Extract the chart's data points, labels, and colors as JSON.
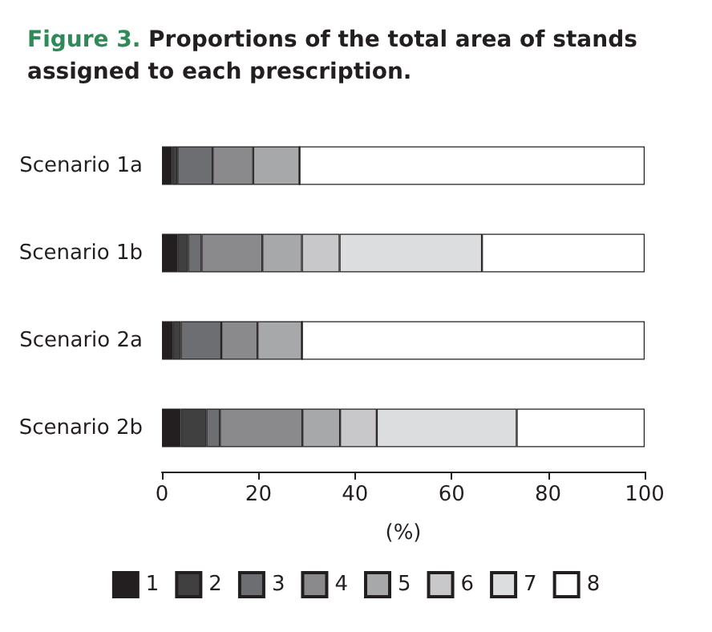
{
  "chart_data": {
    "type": "bar",
    "orientation": "horizontal",
    "stacked": true,
    "title": "Figure 3. Proportions of the total area of stands assigned to each prescription.",
    "xlabel": "(%)",
    "categories": [
      "Scenario 1a",
      "Scenario 1b",
      "Scenario 2a",
      "Scenario 2b"
    ],
    "series": [
      {
        "name": "1",
        "color": "#231f20",
        "values": [
          2.1,
          3.2,
          2.2,
          3.9
        ]
      },
      {
        "name": "2",
        "color": "#404040",
        "values": [
          1.1,
          2.2,
          1.7,
          5.3
        ]
      },
      {
        "name": "3",
        "color": "#6d6e71",
        "values": [
          7.3,
          2.8,
          8.4,
          2.8
        ]
      },
      {
        "name": "4",
        "color": "#8a8a8c",
        "values": [
          8.4,
          12.6,
          7.5,
          17.1
        ]
      },
      {
        "name": "5",
        "color": "#a7a8aa",
        "values": [
          9.6,
          8.2,
          9.2,
          7.8
        ]
      },
      {
        "name": "6",
        "color": "#c8c8ca",
        "values": [
          0,
          7.8,
          0,
          7.6
        ]
      },
      {
        "name": "7",
        "color": "#dcdddf",
        "values": [
          0,
          29.5,
          0,
          29.0
        ]
      },
      {
        "name": "8",
        "color": "#ffffff",
        "values": [
          71.5,
          33.7,
          71.0,
          26.5
        ]
      }
    ],
    "xlim": [
      0,
      100
    ],
    "xticks": [
      0,
      20,
      40,
      60,
      80,
      100
    ],
    "grid": false,
    "legend": "bottom"
  }
}
